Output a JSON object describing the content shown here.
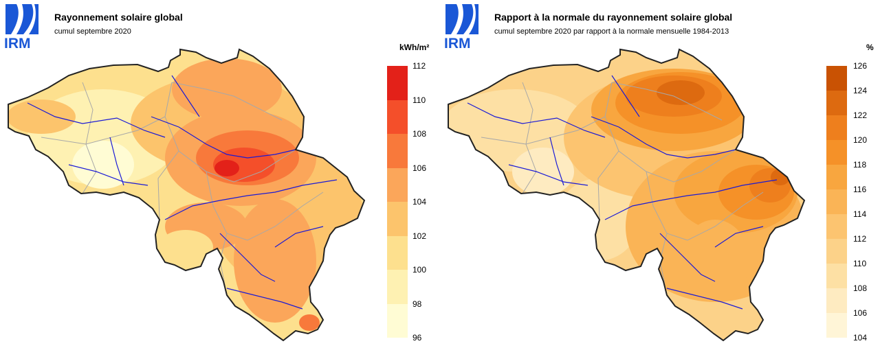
{
  "logo_text": "IRM",
  "panels": [
    {
      "id": "left",
      "title": "Rayonnement solaire global",
      "subtitle": "cumul septembre 2020",
      "unit_label": "kWh/m²",
      "legend": {
        "ticks": [
          "112",
          "110",
          "108",
          "106",
          "104",
          "102",
          "100",
          "98",
          "96"
        ],
        "colors": [
          "#e32119",
          "#f44f2a",
          "#f8793b",
          "#fba65a",
          "#fcc46c",
          "#fde08e",
          "#fef1b2",
          "#fffcd4"
        ]
      }
    },
    {
      "id": "right",
      "title": "Rapport à la normale du rayonnement solaire global",
      "subtitle": "cumul septembre 2020 par rapport à la normale mensuelle 1984-2013",
      "unit_label": "%",
      "legend": {
        "ticks": [
          "126",
          "124",
          "122",
          "120",
          "118",
          "116",
          "114",
          "112",
          "110",
          "108",
          "106",
          "104"
        ],
        "colors": [
          "#c95203",
          "#dd6a10",
          "#ee7f1d",
          "#f59128",
          "#f8a63f",
          "#fab456",
          "#fcc470",
          "#fcd289",
          "#fde0a4",
          "#feebc1",
          "#fff5d7"
        ]
      }
    }
  ],
  "map_colors": {
    "border": "#222222",
    "rivers": "#1a1ad6",
    "provinces": "#a8a8a8"
  }
}
